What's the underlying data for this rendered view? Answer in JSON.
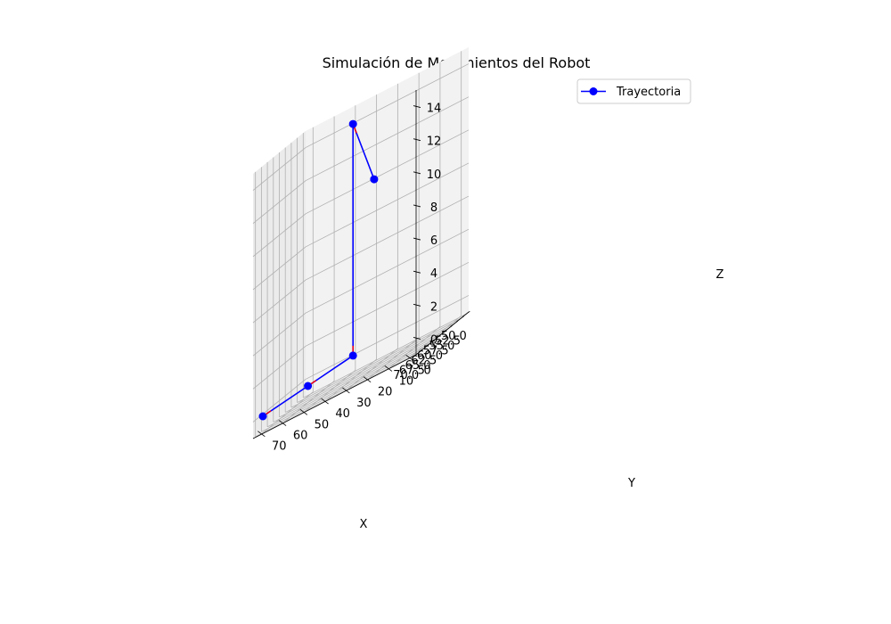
{
  "chart_data": {
    "type": "line",
    "projection": "3d",
    "title": "Simulación de Movimientos del Robot",
    "xlabel": "X",
    "ylabel": "Y",
    "zlabel": "Z",
    "xlim": [
      49.0,
      71.0
    ],
    "ylim": [
      -3.5,
      73.5
    ],
    "zlim": [
      -1.0,
      15.0
    ],
    "x_ticks": [
      50.0,
      52.5,
      55.0,
      57.5,
      60.0,
      62.5,
      65.0,
      67.5,
      70.0
    ],
    "x_tick_labels": [
      "50.0",
      "52.5",
      "55.0",
      "57.5",
      "60.0",
      "62.5",
      "65.0",
      "67.5",
      "70.0"
    ],
    "y_ticks": [
      0,
      10,
      20,
      30,
      40,
      50,
      60,
      70
    ],
    "y_tick_labels": [
      "0",
      "10",
      "20",
      "30",
      "40",
      "50",
      "60",
      "70"
    ],
    "z_ticks": [
      0,
      2,
      4,
      6,
      8,
      10,
      12,
      14
    ],
    "z_tick_labels": [
      "0",
      "2",
      "4",
      "6",
      "8",
      "10",
      "12",
      "14"
    ],
    "grid": true,
    "legend_position": "top-right",
    "series": [
      {
        "name": "Trayectoria",
        "color": "#0000ff",
        "marker": "circle",
        "points": [
          {
            "x": 70,
            "y": 70,
            "z": 0
          },
          {
            "x": 60,
            "y": 60,
            "z": 0
          },
          {
            "x": 50,
            "y": 50,
            "z": 0
          },
          {
            "x": 50,
            "y": 50,
            "z": 14
          },
          {
            "x": 50,
            "y": 40,
            "z": 10
          }
        ]
      }
    ],
    "direction_arrow_color": "#ff0000"
  }
}
